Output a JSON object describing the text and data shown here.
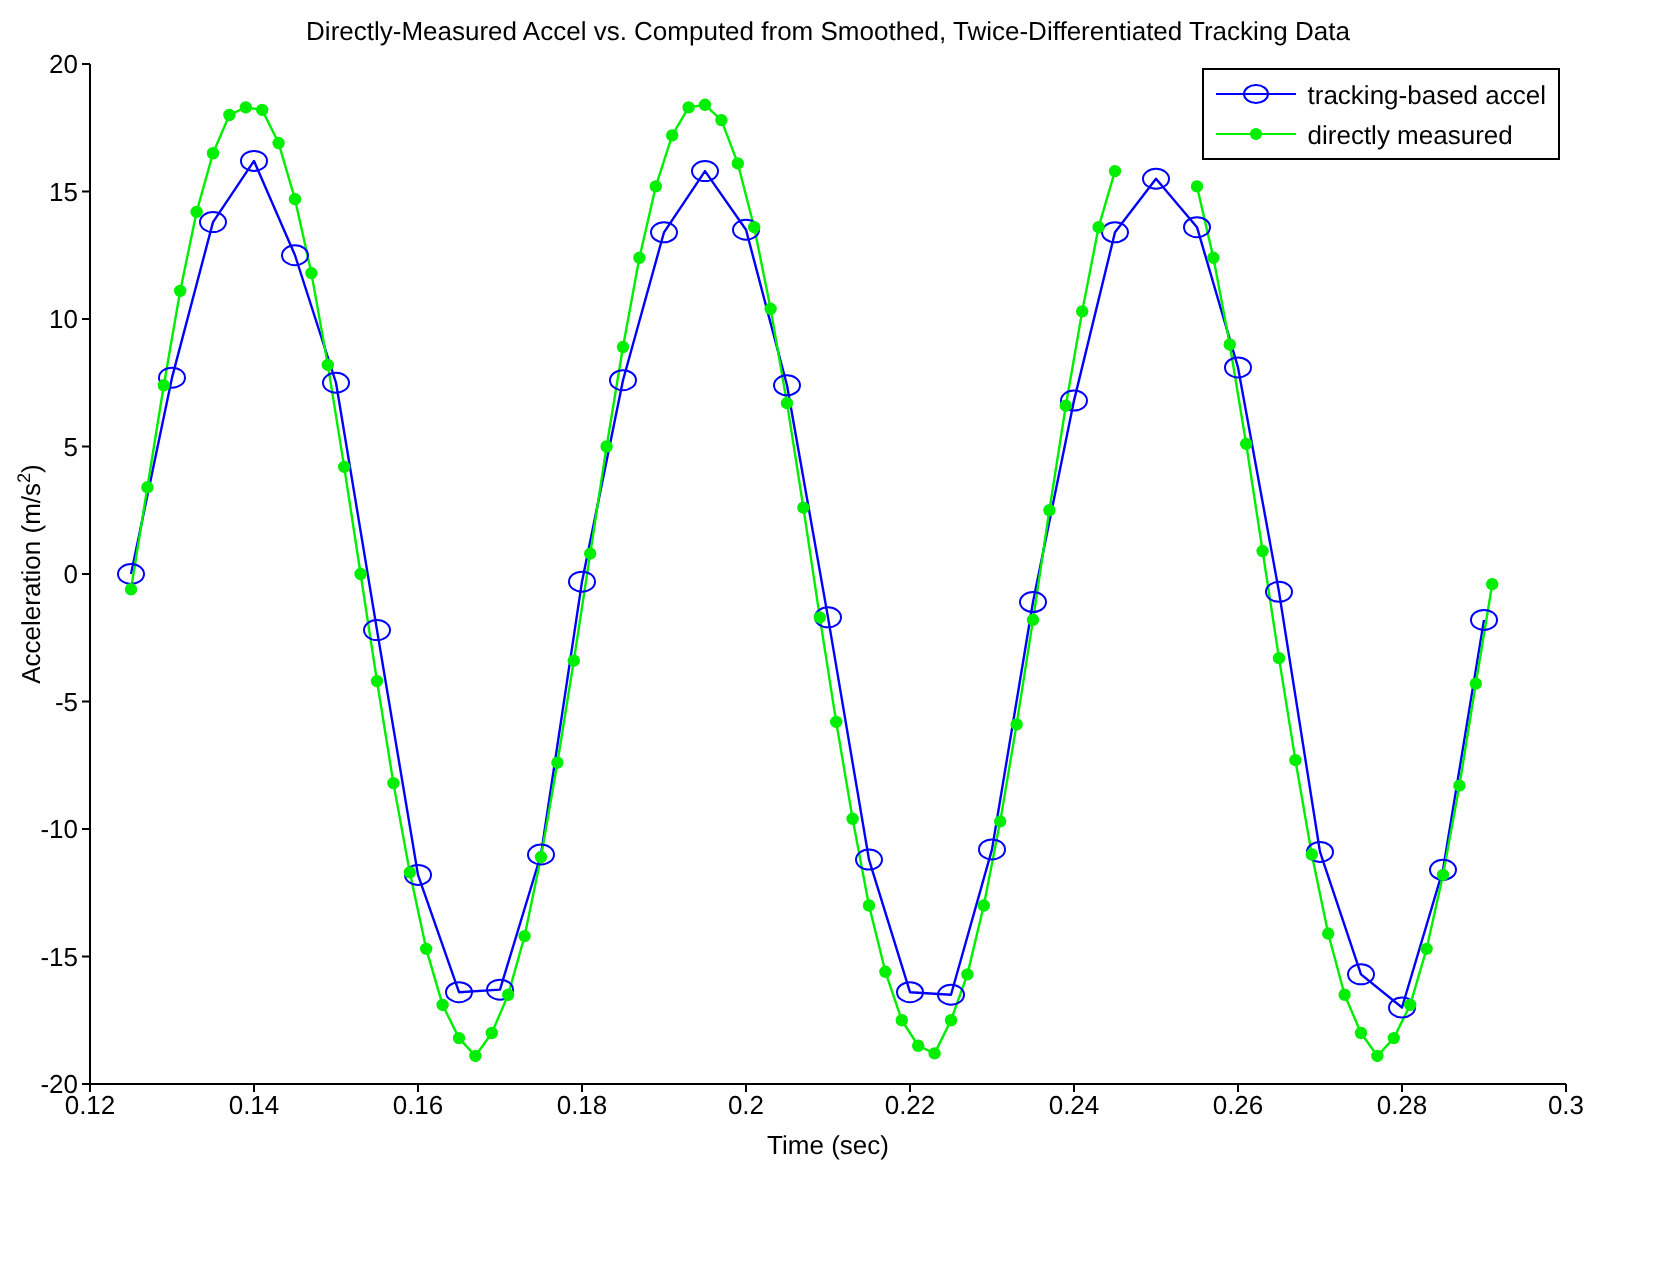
{
  "chart_data": {
    "type": "line",
    "title": "Directly-Measured Accel vs. Computed from Smoothed, Twice-Differentiated Tracking Data",
    "xlabel": "Time (sec)",
    "ylabel": "Acceleration (m/s$^{2}$)",
    "xlim": [
      0.12,
      0.3
    ],
    "xticks": [
      0.12,
      0.14,
      0.16,
      0.18,
      {
        "value": 0.2,
        "label": "0.2"
      },
      0.22,
      0.24,
      0.26,
      0.28,
      {
        "value": 0.3,
        "label": "0.3"
      }
    ],
    "ylim": [
      -20,
      20
    ],
    "yticks": [
      -20,
      -15,
      -10,
      -5,
      0,
      5,
      10,
      15,
      20
    ],
    "legend": "top right",
    "series": [
      {
        "name": "tracking-based accel",
        "color": "#0000ff",
        "marker": "circle",
        "x": [
          0.125,
          0.13,
          0.135,
          0.14,
          0.145,
          0.15,
          0.155,
          0.16,
          0.165,
          0.17,
          0.175,
          0.18,
          0.185,
          0.19,
          0.195,
          0.2,
          0.205,
          0.21,
          0.215,
          0.22,
          0.225,
          0.23,
          0.235,
          0.24,
          0.245,
          0.25,
          0.255,
          0.26,
          0.265,
          0.27,
          0.275,
          0.28,
          0.285,
          0.29
        ],
        "values": [
          0.0,
          7.7,
          13.8,
          16.2,
          12.5,
          7.5,
          -2.2,
          -11.8,
          -16.4,
          -16.3,
          -11.0,
          -0.3,
          7.6,
          13.4,
          15.8,
          13.5,
          7.4,
          -1.7,
          -11.2,
          -16.4,
          -16.5,
          -10.8,
          -1.1,
          6.8,
          13.4,
          15.5,
          13.6,
          8.1,
          -0.7,
          -10.9,
          -15.7,
          -17.0,
          -11.6,
          -1.8
        ]
      },
      {
        "name": "directly measured",
        "color": "#00ee00",
        "marker": "circle",
        "x": [
          0.125,
          0.127,
          0.129,
          0.131,
          0.133,
          0.135,
          0.137,
          0.139,
          0.141,
          0.143,
          0.145,
          0.147,
          0.149,
          0.151,
          0.153,
          0.155,
          0.157,
          0.159,
          0.161,
          0.163,
          0.165,
          0.167,
          0.169,
          0.171,
          0.173,
          0.175,
          0.177,
          0.179,
          0.181,
          0.183,
          0.185,
          0.187,
          0.189,
          0.191,
          0.193,
          0.195,
          0.197,
          0.199,
          0.201,
          0.203,
          0.205,
          0.207,
          0.209,
          0.211,
          0.213,
          0.215,
          0.217,
          0.219,
          0.221,
          0.223,
          0.225,
          0.227,
          0.229,
          0.231,
          0.233,
          0.235,
          0.237,
          0.239,
          0.241,
          0.243,
          0.245,
          0.247,
          0.249,
          0.251,
          0.253,
          0.255,
          0.257,
          0.259,
          0.261,
          0.263,
          0.265,
          0.267,
          0.269,
          0.271,
          0.273,
          0.275,
          0.277,
          0.279,
          0.281,
          0.283,
          0.285,
          0.287,
          0.289,
          0.291
        ],
        "values": [
          -0.6,
          3.4,
          7.4,
          11.1,
          14.2,
          16.5,
          18.0,
          18.3,
          18.2,
          16.9,
          14.7,
          11.8,
          8.2,
          4.2,
          0.0,
          -4.2,
          -8.2,
          -11.7,
          -14.7,
          -16.9,
          -18.2,
          -18.9,
          -18.0,
          -16.5,
          -14.2,
          -11.1,
          -7.4,
          -3.4,
          0.8,
          5.0,
          8.9,
          12.4,
          15.2,
          17.2,
          18.3,
          18.4,
          17.8,
          16.1,
          13.6,
          10.4,
          6.7,
          2.6,
          -1.7,
          -5.8,
          -9.6,
          -13.0,
          -15.6,
          -17.5,
          -18.5,
          -18.8,
          -17.5,
          -15.7,
          -13.0,
          -9.7,
          -5.9,
          -1.8,
          2.5,
          6.6,
          10.3,
          13.6,
          15.8,
          null,
          null,
          null,
          null,
          15.2,
          12.4,
          9.0,
          5.1,
          0.9,
          -3.3,
          -7.3,
          -11.0,
          -14.1,
          -16.5,
          -18.0,
          -18.9,
          -18.2,
          -16.9,
          -14.7,
          -11.8,
          -8.3,
          -4.3,
          -0.4
        ]
      }
    ]
  }
}
